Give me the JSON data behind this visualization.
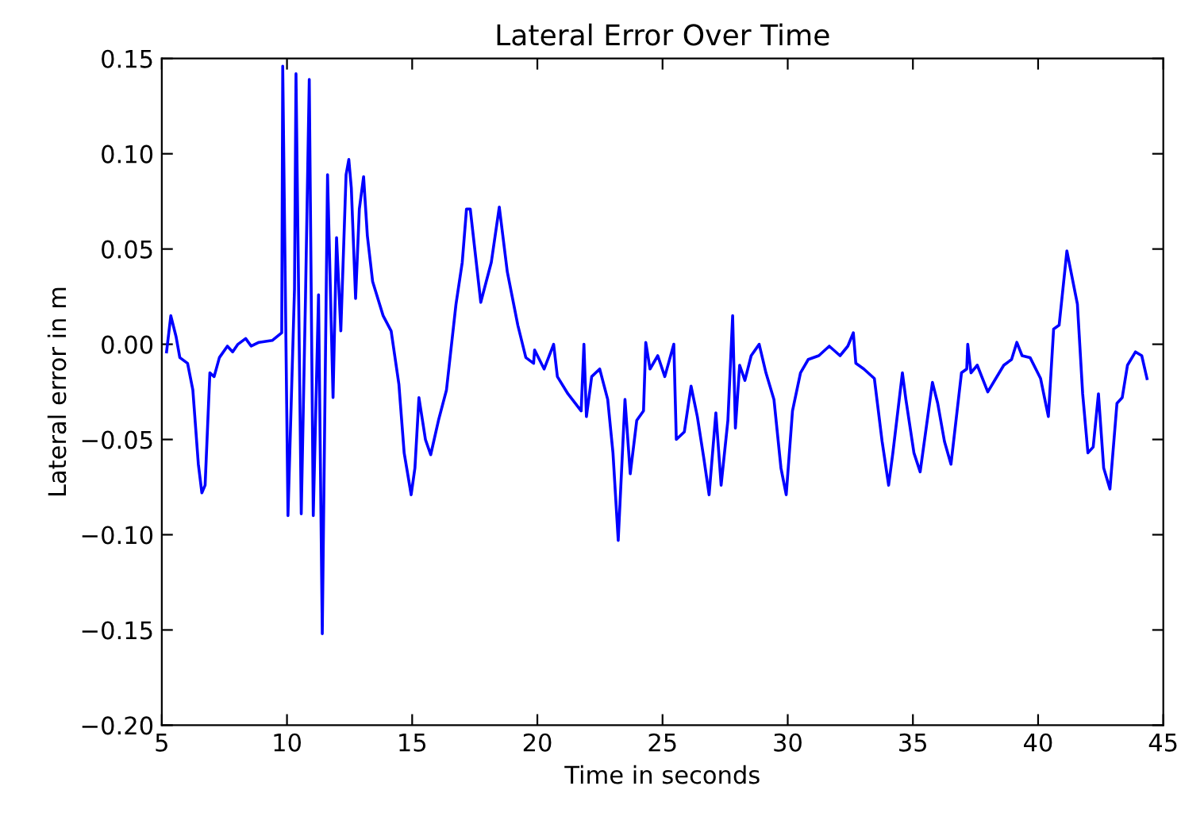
{
  "chart_data": {
    "type": "line",
    "title": "Lateral Error Over Time",
    "xlabel": "Time in seconds",
    "ylabel": "Lateral error in m",
    "xlim": [
      5,
      45
    ],
    "xticks": [
      5,
      10,
      15,
      20,
      25,
      30,
      35,
      40,
      45
    ],
    "ylim": [
      -0.2,
      0.15
    ],
    "yticks": [
      {
        "value": -0.2,
        "label": "−0.20"
      },
      {
        "value": -0.15,
        "label": "−0.15"
      },
      {
        "value": -0.1,
        "label": "−0.10"
      },
      {
        "value": -0.05,
        "label": "−0.05"
      },
      {
        "value": 0,
        "label": "0.00"
      },
      {
        "value": 0.05,
        "label": "0.05"
      },
      {
        "value": 0.1,
        "label": "0.10"
      },
      {
        "value": 0.15,
        "label": "0.15"
      }
    ],
    "grid": false,
    "legend": false,
    "marker": "none",
    "line_style": "solid",
    "series": [
      {
        "color": "#0000ff",
        "x": [
          5.19,
          5.36,
          5.57,
          5.72,
          6.03,
          6.24,
          6.46,
          6.6,
          6.73,
          6.92,
          7.09,
          7.3,
          7.62,
          7.83,
          8.04,
          8.35,
          8.57,
          8.88,
          9.41,
          9.79,
          9.83,
          10.04,
          10.3,
          10.36,
          10.57,
          10.74,
          10.89,
          11.05,
          11.26,
          11.41,
          11.62,
          11.84,
          11.98,
          12.15,
          12.36,
          12.47,
          12.57,
          12.74,
          12.89,
          13.06,
          13.21,
          13.42,
          13.84,
          14.16,
          14.47,
          14.68,
          14.96,
          15.11,
          15.27,
          15.53,
          15.74,
          16.05,
          16.37,
          16.75,
          17.0,
          17.17,
          17.32,
          17.74,
          18.16,
          18.48,
          18.8,
          19.22,
          19.54,
          19.85,
          19.89,
          20.27,
          20.65,
          20.8,
          21.22,
          21.75,
          21.86,
          21.96,
          22.17,
          22.49,
          22.81,
          23.02,
          23.23,
          23.5,
          23.71,
          23.97,
          24.24,
          24.33,
          24.5,
          24.81,
          25.09,
          25.45,
          25.55,
          25.87,
          26.14,
          26.39,
          26.65,
          26.86,
          27.13,
          27.34,
          27.61,
          27.8,
          27.91,
          28.08,
          28.29,
          28.54,
          28.86,
          29.13,
          29.45,
          29.73,
          29.94,
          30.19,
          30.51,
          30.82,
          31.24,
          31.66,
          32.09,
          32.4,
          32.62,
          32.72,
          33.04,
          33.46,
          33.77,
          34.03,
          34.2,
          34.58,
          34.72,
          35.04,
          35.29,
          35.78,
          35.99,
          36.26,
          36.52,
          36.94,
          37.15,
          37.19,
          37.32,
          37.57,
          37.99,
          38.31,
          38.63,
          38.94,
          39.15,
          39.36,
          39.68,
          40.1,
          40.41,
          40.62,
          40.84,
          41.15,
          41.36,
          41.57,
          41.78,
          41.99,
          42.2,
          42.41,
          42.62,
          42.87,
          43.15,
          43.36,
          43.57,
          43.89,
          44.14,
          44.35
        ],
        "values": [
          -0.004,
          0.015,
          0.004,
          -0.007,
          -0.01,
          -0.024,
          -0.063,
          -0.078,
          -0.074,
          -0.015,
          -0.017,
          -0.007,
          -0.001,
          -0.004,
          0.0,
          0.003,
          -0.001,
          0.001,
          0.002,
          0.006,
          0.146,
          -0.09,
          0.029,
          0.142,
          -0.089,
          0.025,
          0.139,
          -0.09,
          0.026,
          -0.152,
          0.089,
          -0.028,
          0.056,
          0.007,
          0.089,
          0.097,
          0.082,
          0.024,
          0.071,
          0.088,
          0.057,
          0.033,
          0.015,
          0.007,
          -0.021,
          -0.057,
          -0.079,
          -0.065,
          -0.028,
          -0.05,
          -0.058,
          -0.04,
          -0.024,
          0.021,
          0.043,
          0.071,
          0.071,
          0.022,
          0.043,
          0.072,
          0.038,
          0.01,
          -0.007,
          -0.01,
          -0.003,
          -0.013,
          0.0,
          -0.017,
          -0.026,
          -0.035,
          0.0,
          -0.038,
          -0.017,
          -0.013,
          -0.029,
          -0.057,
          -0.103,
          -0.029,
          -0.068,
          -0.04,
          -0.035,
          0.001,
          -0.013,
          -0.006,
          -0.017,
          0.0,
          -0.05,
          -0.046,
          -0.022,
          -0.038,
          -0.06,
          -0.079,
          -0.036,
          -0.074,
          -0.04,
          0.015,
          -0.044,
          -0.011,
          -0.019,
          -0.006,
          0.0,
          -0.015,
          -0.029,
          -0.065,
          -0.079,
          -0.035,
          -0.015,
          -0.008,
          -0.006,
          -0.001,
          -0.006,
          -0.001,
          0.006,
          -0.01,
          -0.013,
          -0.018,
          -0.051,
          -0.074,
          -0.057,
          -0.015,
          -0.029,
          -0.057,
          -0.067,
          -0.02,
          -0.031,
          -0.051,
          -0.063,
          -0.015,
          -0.013,
          0.0,
          -0.015,
          -0.011,
          -0.025,
          -0.018,
          -0.011,
          -0.008,
          0.001,
          -0.006,
          -0.007,
          -0.018,
          -0.038,
          0.008,
          0.01,
          0.049,
          0.035,
          0.021,
          -0.026,
          -0.057,
          -0.054,
          -0.026,
          -0.065,
          -0.076,
          -0.031,
          -0.028,
          -0.011,
          -0.004,
          -0.006,
          -0.018
        ]
      }
    ]
  }
}
